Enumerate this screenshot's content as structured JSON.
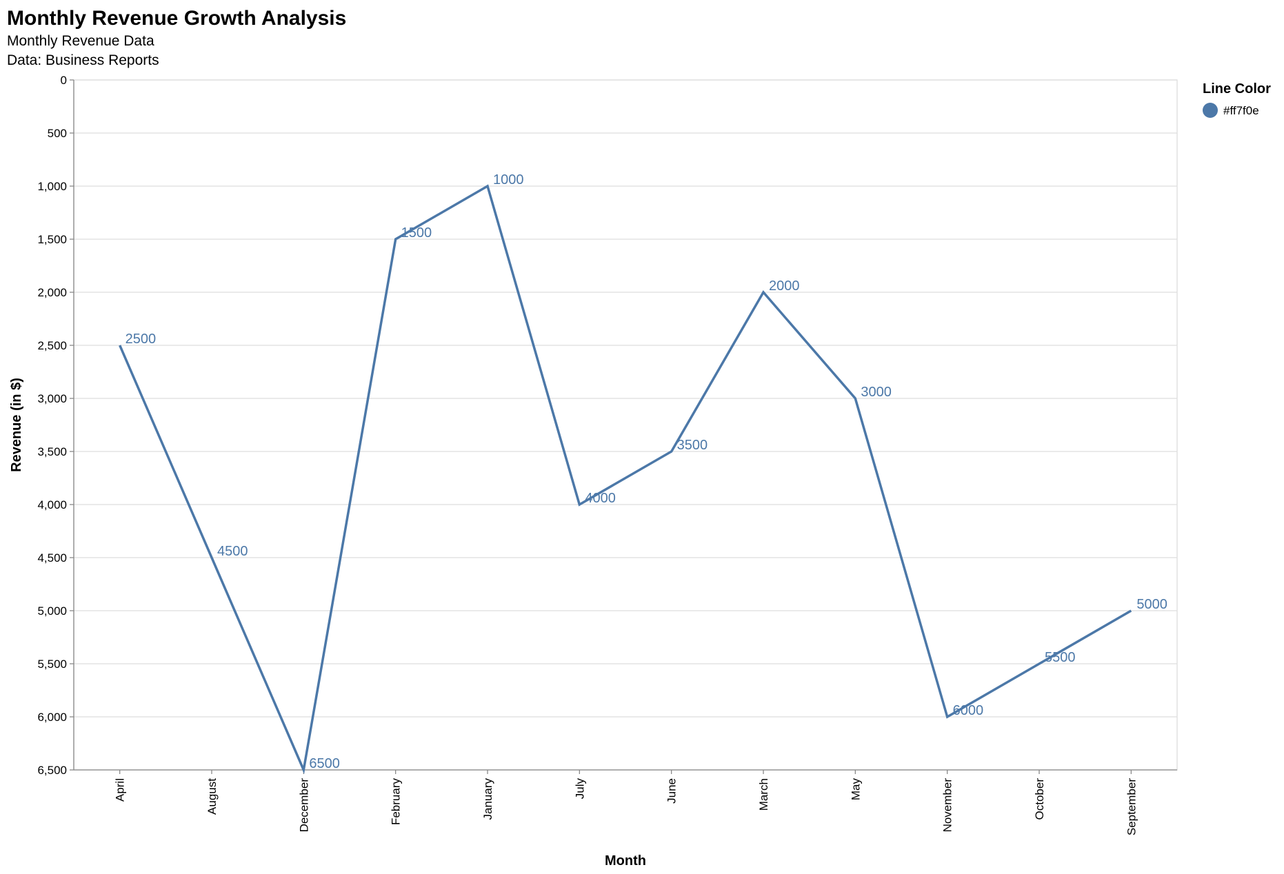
{
  "chart_data": {
    "type": "line",
    "title": "Monthly Revenue Growth Analysis",
    "subtitle_lines": [
      "Monthly Revenue Data",
      "Data: Business Reports"
    ],
    "xlabel": "Month",
    "ylabel": "Revenue (in $)",
    "categories": [
      "April",
      "August",
      "December",
      "February",
      "January",
      "July",
      "June",
      "March",
      "May",
      "November",
      "October",
      "September"
    ],
    "series": [
      {
        "values": [
          2500,
          4500,
          6500,
          1500,
          1000,
          4000,
          3500,
          2000,
          3000,
          6000,
          5500,
          5000
        ],
        "color": "#4c78a8"
      }
    ],
    "data_labels": [
      "2500",
      "4500",
      "6500",
      "1500",
      "1000",
      "4000",
      "3500",
      "2000",
      "3000",
      "6000",
      "5500",
      "5000"
    ],
    "y_axis": {
      "ylim": [
        0,
        6500
      ],
      "reversed": true,
      "tick_values": [
        0,
        500,
        1000,
        1500,
        2000,
        2500,
        3000,
        3500,
        4000,
        4500,
        5000,
        5500,
        6000,
        6500
      ],
      "tick_labels": [
        "0",
        "500",
        "1,000",
        "1,500",
        "2,000",
        "2,500",
        "3,000",
        "3,500",
        "4,000",
        "4,500",
        "5,000",
        "5,500",
        "6,000",
        "6,500"
      ]
    },
    "grid": true,
    "legend": {
      "placement": "right",
      "title": "Line Color",
      "entries": [
        {
          "label": "#ff7f0e",
          "color": "#4c78a8"
        }
      ]
    }
  }
}
